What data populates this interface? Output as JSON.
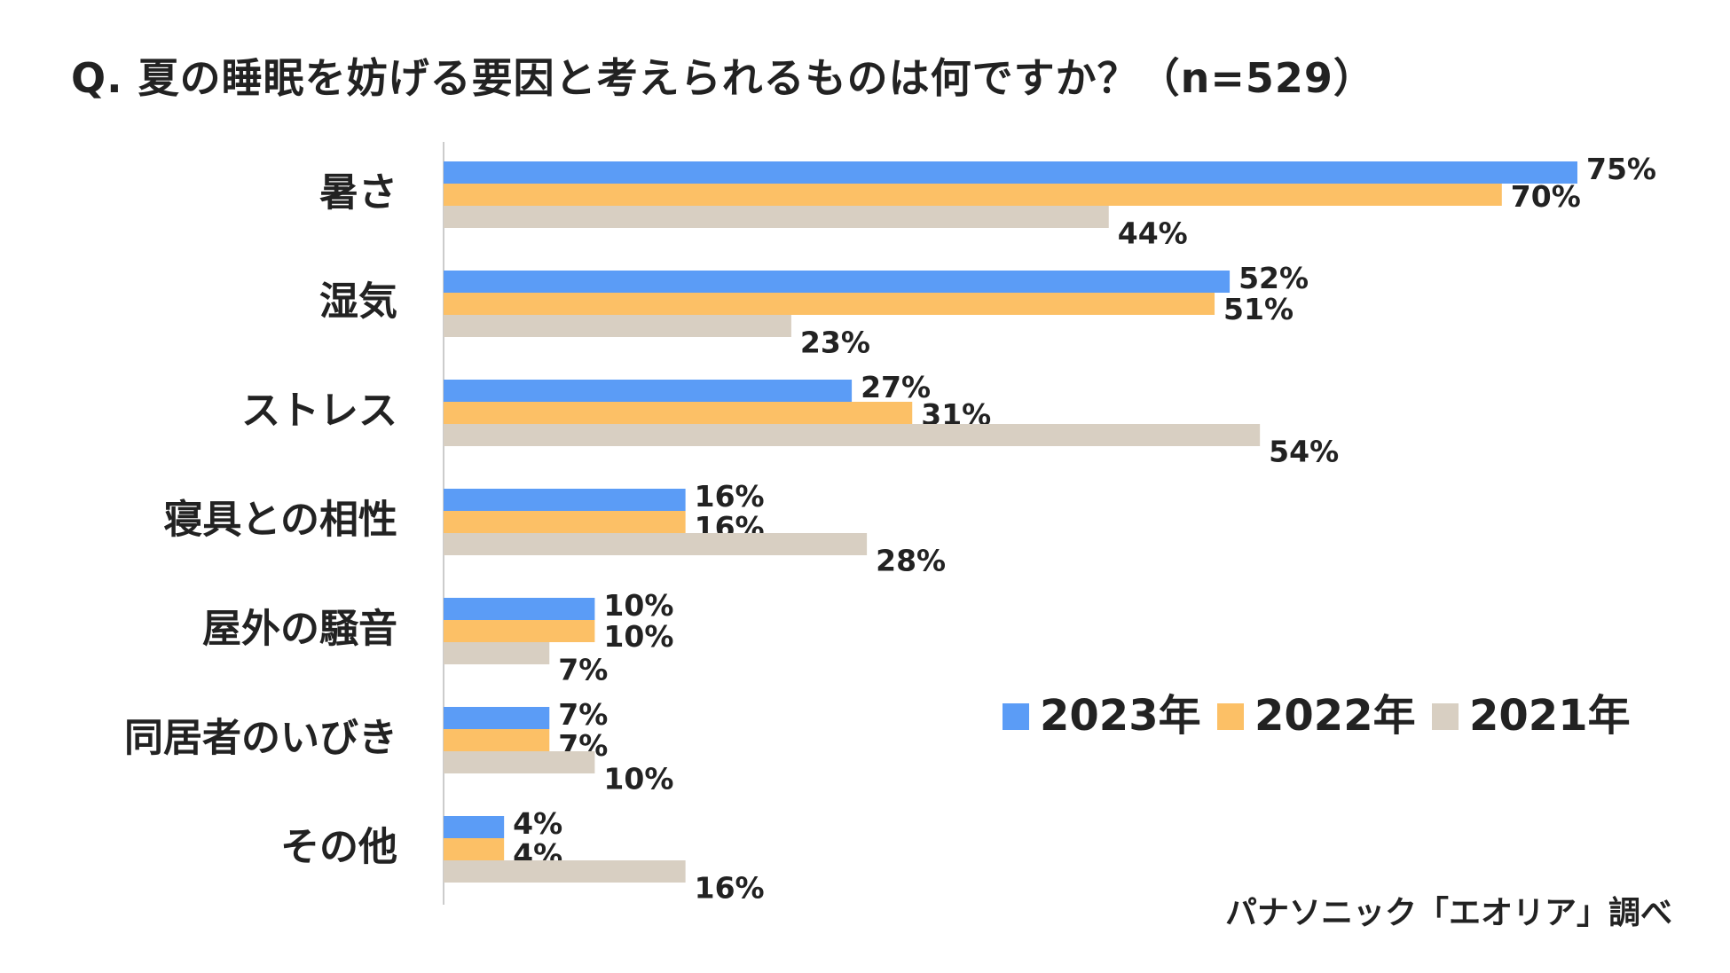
{
  "chart_data": {
    "type": "bar",
    "orientation": "horizontal",
    "title": "Q. 夏の睡眠を妨げる要因と考えられるものは何ですか？（n=529）",
    "categories": [
      "暑さ",
      "湿気",
      "ストレス",
      "寝具との相性",
      "屋外の騒音",
      "同居者のいびき",
      "その他"
    ],
    "series": [
      {
        "name": "2023年",
        "color": "#5b9cf6",
        "values": [
          75,
          52,
          27,
          16,
          10,
          7,
          4
        ]
      },
      {
        "name": "2022年",
        "color": "#fcc066",
        "values": [
          70,
          51,
          31,
          16,
          10,
          7,
          4
        ]
      },
      {
        "name": "2021年",
        "color": "#d8cfc2",
        "values": [
          44,
          23,
          54,
          28,
          7,
          10,
          16
        ]
      }
    ],
    "value_suffix": "%",
    "xlim": [
      0,
      75
    ],
    "grid": false,
    "legend_position": "bottom-right",
    "source": "パナソニック「エオリア」調べ"
  }
}
